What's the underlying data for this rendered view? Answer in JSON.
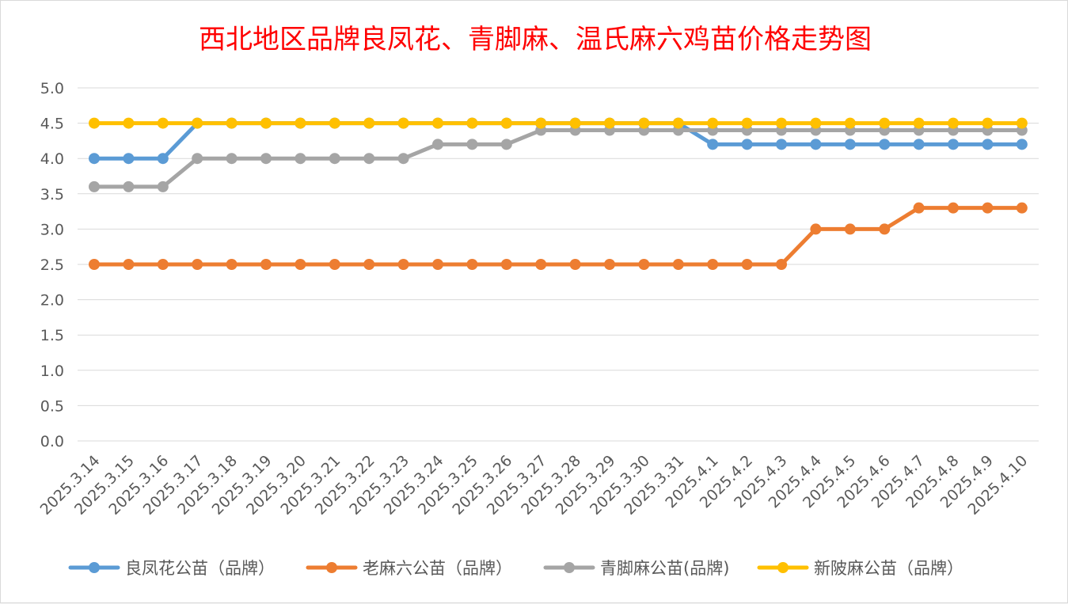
{
  "chart_data": {
    "type": "line",
    "title": "西北地区品牌良凤花、青脚麻、温氏麻六鸡苗价格走势图",
    "xlabel": "",
    "ylabel": "",
    "ylim": [
      0,
      5
    ],
    "yticks": [
      "0.0",
      "0.5",
      "1.0",
      "1.5",
      "2.0",
      "2.5",
      "3.0",
      "3.5",
      "4.0",
      "4.5",
      "5.0"
    ],
    "grid": true,
    "legend_position": "bottom",
    "categories": [
      "2025.3.14",
      "2025.3.15",
      "2025.3.16",
      "2025.3.17",
      "2025.3.18",
      "2025.3.19",
      "2025.3.20",
      "2025.3.21",
      "2025.3.22",
      "2025.3.23",
      "2025.3.24",
      "2025.3.25",
      "2025.3.26",
      "2025.3.27",
      "2025.3.28",
      "2025.3.29",
      "2025.3.30",
      "2025.3.31",
      "2025.4.1",
      "2025.4.2",
      "2025.4.3",
      "2025.4.4",
      "2025.4.5",
      "2025.4.6",
      "2025.4.7",
      "2025.4.8",
      "2025.4.9",
      "2025.4.10"
    ],
    "series": [
      {
        "name": "良凤花公苗（品牌）",
        "color": "#5b9bd5",
        "values": [
          4.0,
          4.0,
          4.0,
          4.5,
          4.5,
          4.5,
          4.5,
          4.5,
          4.5,
          4.5,
          4.5,
          4.5,
          4.5,
          4.5,
          4.5,
          4.5,
          4.5,
          4.5,
          4.2,
          4.2,
          4.2,
          4.2,
          4.2,
          4.2,
          4.2,
          4.2,
          4.2,
          4.2
        ]
      },
      {
        "name": "老麻六公苗（品牌）",
        "color": "#ed7d31",
        "values": [
          2.5,
          2.5,
          2.5,
          2.5,
          2.5,
          2.5,
          2.5,
          2.5,
          2.5,
          2.5,
          2.5,
          2.5,
          2.5,
          2.5,
          2.5,
          2.5,
          2.5,
          2.5,
          2.5,
          2.5,
          2.5,
          3.0,
          3.0,
          3.0,
          3.3,
          3.3,
          3.3,
          3.3
        ]
      },
      {
        "name": "青脚麻公苗(品牌)",
        "color": "#a5a5a5",
        "values": [
          3.6,
          3.6,
          3.6,
          4.0,
          4.0,
          4.0,
          4.0,
          4.0,
          4.0,
          4.0,
          4.2,
          4.2,
          4.2,
          4.4,
          4.4,
          4.4,
          4.4,
          4.4,
          4.4,
          4.4,
          4.4,
          4.4,
          4.4,
          4.4,
          4.4,
          4.4,
          4.4,
          4.4
        ]
      },
      {
        "name": "新陂麻公苗（品牌）",
        "color": "#ffc000",
        "values": [
          4.5,
          4.5,
          4.5,
          4.5,
          4.5,
          4.5,
          4.5,
          4.5,
          4.5,
          4.5,
          4.5,
          4.5,
          4.5,
          4.5,
          4.5,
          4.5,
          4.5,
          4.5,
          4.5,
          4.5,
          4.5,
          4.5,
          4.5,
          4.5,
          4.5,
          4.5,
          4.5,
          4.5
        ]
      }
    ]
  }
}
